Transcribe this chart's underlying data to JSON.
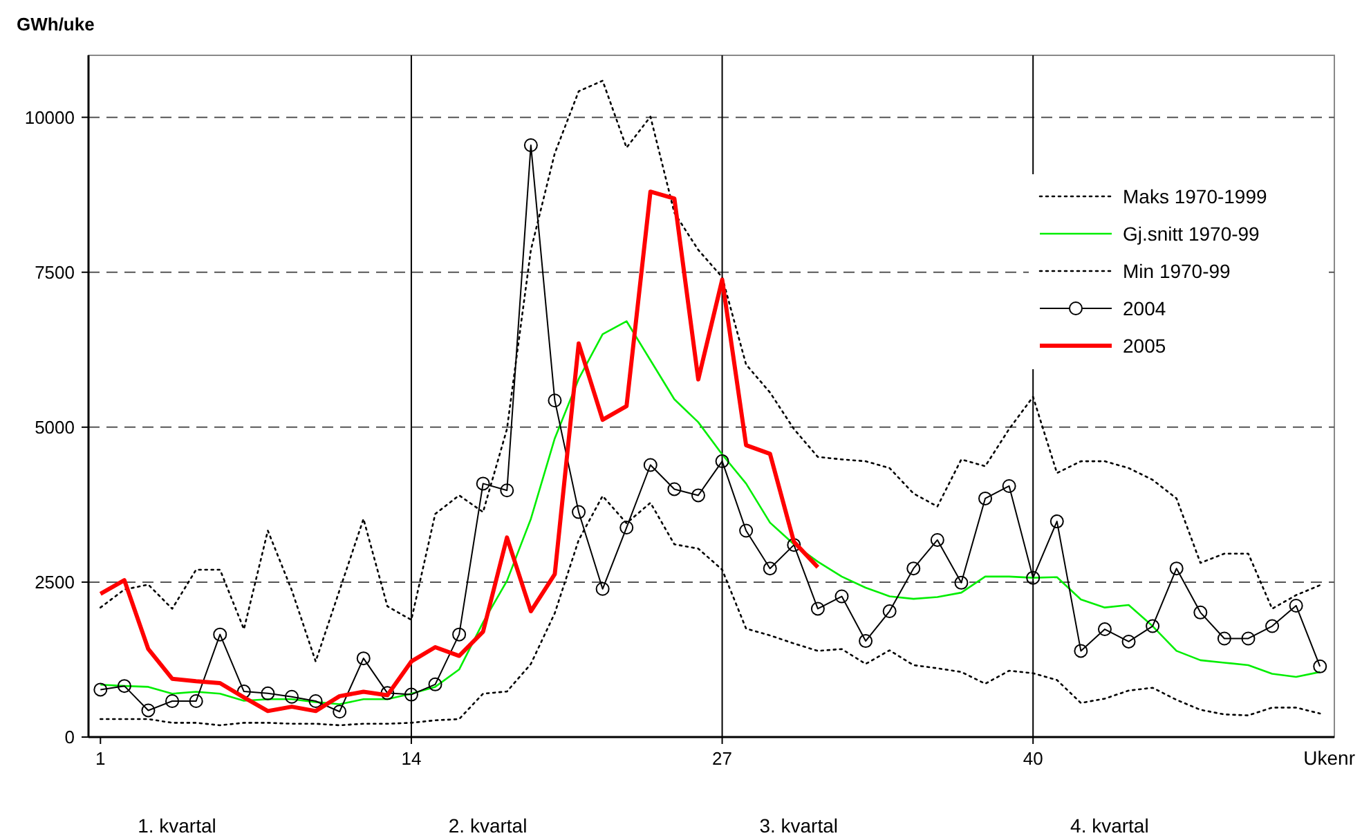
{
  "chart_data": {
    "type": "line",
    "ylabel": "GWh/uke",
    "xlabel": "Ukenr",
    "x": [
      1,
      2,
      3,
      4,
      5,
      6,
      7,
      8,
      9,
      10,
      11,
      12,
      13,
      14,
      15,
      16,
      17,
      18,
      19,
      20,
      21,
      22,
      23,
      24,
      25,
      26,
      27,
      28,
      29,
      30,
      31,
      32,
      33,
      34,
      35,
      36,
      37,
      38,
      39,
      40,
      41,
      42,
      43,
      44,
      45,
      46,
      47,
      48,
      49,
      50,
      51,
      52
    ],
    "xlim": [
      0.5,
      52.6
    ],
    "xticks": [
      1,
      14,
      27,
      40
    ],
    "ylim": [
      0,
      11000
    ],
    "yticks": [
      0,
      2500,
      5000,
      7500,
      10000
    ],
    "grid": "y",
    "legend": "top right",
    "ref_lines": [
      {
        "axis": "x",
        "value": 14,
        "color": "#000000"
      },
      {
        "axis": "x",
        "value": 27,
        "color": "#000000"
      },
      {
        "axis": "x",
        "value": 40,
        "color": "#000000"
      }
    ],
    "annotations": [
      "1. kvartal",
      "2. kvartal",
      "3. kvartal",
      "4. kvartal"
    ],
    "series": [
      {
        "name": "Maks 1970-1999",
        "color": "#000000",
        "line_style": "dotted",
        "marker": "none",
        "values": [
          2090,
          2380,
          2460,
          2070,
          2700,
          2700,
          1740,
          3330,
          2370,
          1220,
          2370,
          3520,
          2110,
          1890,
          3600,
          3900,
          3630,
          4970,
          7860,
          9420,
          10420,
          10590,
          9510,
          10010,
          8460,
          7860,
          7420,
          6010,
          5560,
          4970,
          4520,
          4480,
          4450,
          4340,
          3930,
          3720,
          4480,
          4370,
          4970,
          5490,
          4260,
          4450,
          4450,
          4340,
          4150,
          3850,
          2810,
          2960,
          2960,
          2070,
          2290,
          2450
        ]
      },
      {
        "name": "Gj.snitt 1970-99",
        "color": "#00ee00",
        "line_style": "solid",
        "marker": "none",
        "values": [
          845,
          824,
          810,
          700,
          730,
          700,
          585,
          610,
          610,
          565,
          530,
          610,
          610,
          700,
          810,
          1090,
          1850,
          2520,
          3520,
          4820,
          5780,
          6500,
          6710,
          6080,
          5450,
          5080,
          4560,
          4090,
          3460,
          3110,
          2830,
          2590,
          2410,
          2270,
          2230,
          2260,
          2330,
          2590,
          2590,
          2570,
          2580,
          2220,
          2090,
          2130,
          1790,
          1390,
          1240,
          1200,
          1160,
          1020,
          970,
          1050
        ]
      },
      {
        "name": "Min 1970-99",
        "color": "#000000",
        "line_style": "dotted",
        "marker": "none",
        "values": [
          290,
          290,
          290,
          230,
          230,
          190,
          230,
          230,
          215,
          215,
          190,
          215,
          215,
          230,
          270,
          290,
          700,
          735,
          1180,
          2000,
          3180,
          3890,
          3450,
          3780,
          3110,
          3040,
          2700,
          1750,
          1640,
          1510,
          1390,
          1420,
          1180,
          1400,
          1160,
          1110,
          1050,
          860,
          1070,
          1030,
          920,
          550,
          620,
          750,
          795,
          600,
          440,
          365,
          350,
          475,
          475,
          380
        ]
      },
      {
        "name": "2004",
        "color": "#000000",
        "line_style": "solid",
        "marker": "circle",
        "values": [
          765,
          824,
          430,
          580,
          580,
          1655,
          735,
          705,
          650,
          580,
          410,
          1270,
          710,
          685,
          850,
          1655,
          4090,
          3980,
          9550,
          5430,
          3630,
          2390,
          3380,
          4390,
          4000,
          3900,
          4450,
          3330,
          2720,
          3100,
          2070,
          2270,
          1550,
          2030,
          2720,
          3180,
          2490,
          3850,
          4050,
          2570,
          3480,
          1390,
          1740,
          1540,
          1790,
          2720,
          2010,
          1590,
          1590,
          1790,
          2120,
          1140
        ]
      },
      {
        "name": "2005",
        "color": "#ff0000",
        "line_style": "solid",
        "marker": "none",
        "values": [
          2310,
          2530,
          1420,
          940,
          900,
          870,
          640,
          420,
          490,
          420,
          660,
          730,
          675,
          1220,
          1450,
          1310,
          1700,
          3220,
          2030,
          2630,
          6350,
          5120,
          5340,
          8800,
          8690,
          5770,
          7380,
          4710,
          4570,
          3150,
          2740,
          null,
          null,
          null,
          null,
          null,
          null,
          null,
          null,
          null,
          null,
          null,
          null,
          null,
          null,
          null,
          null,
          null,
          null,
          null,
          null,
          null
        ]
      }
    ]
  }
}
